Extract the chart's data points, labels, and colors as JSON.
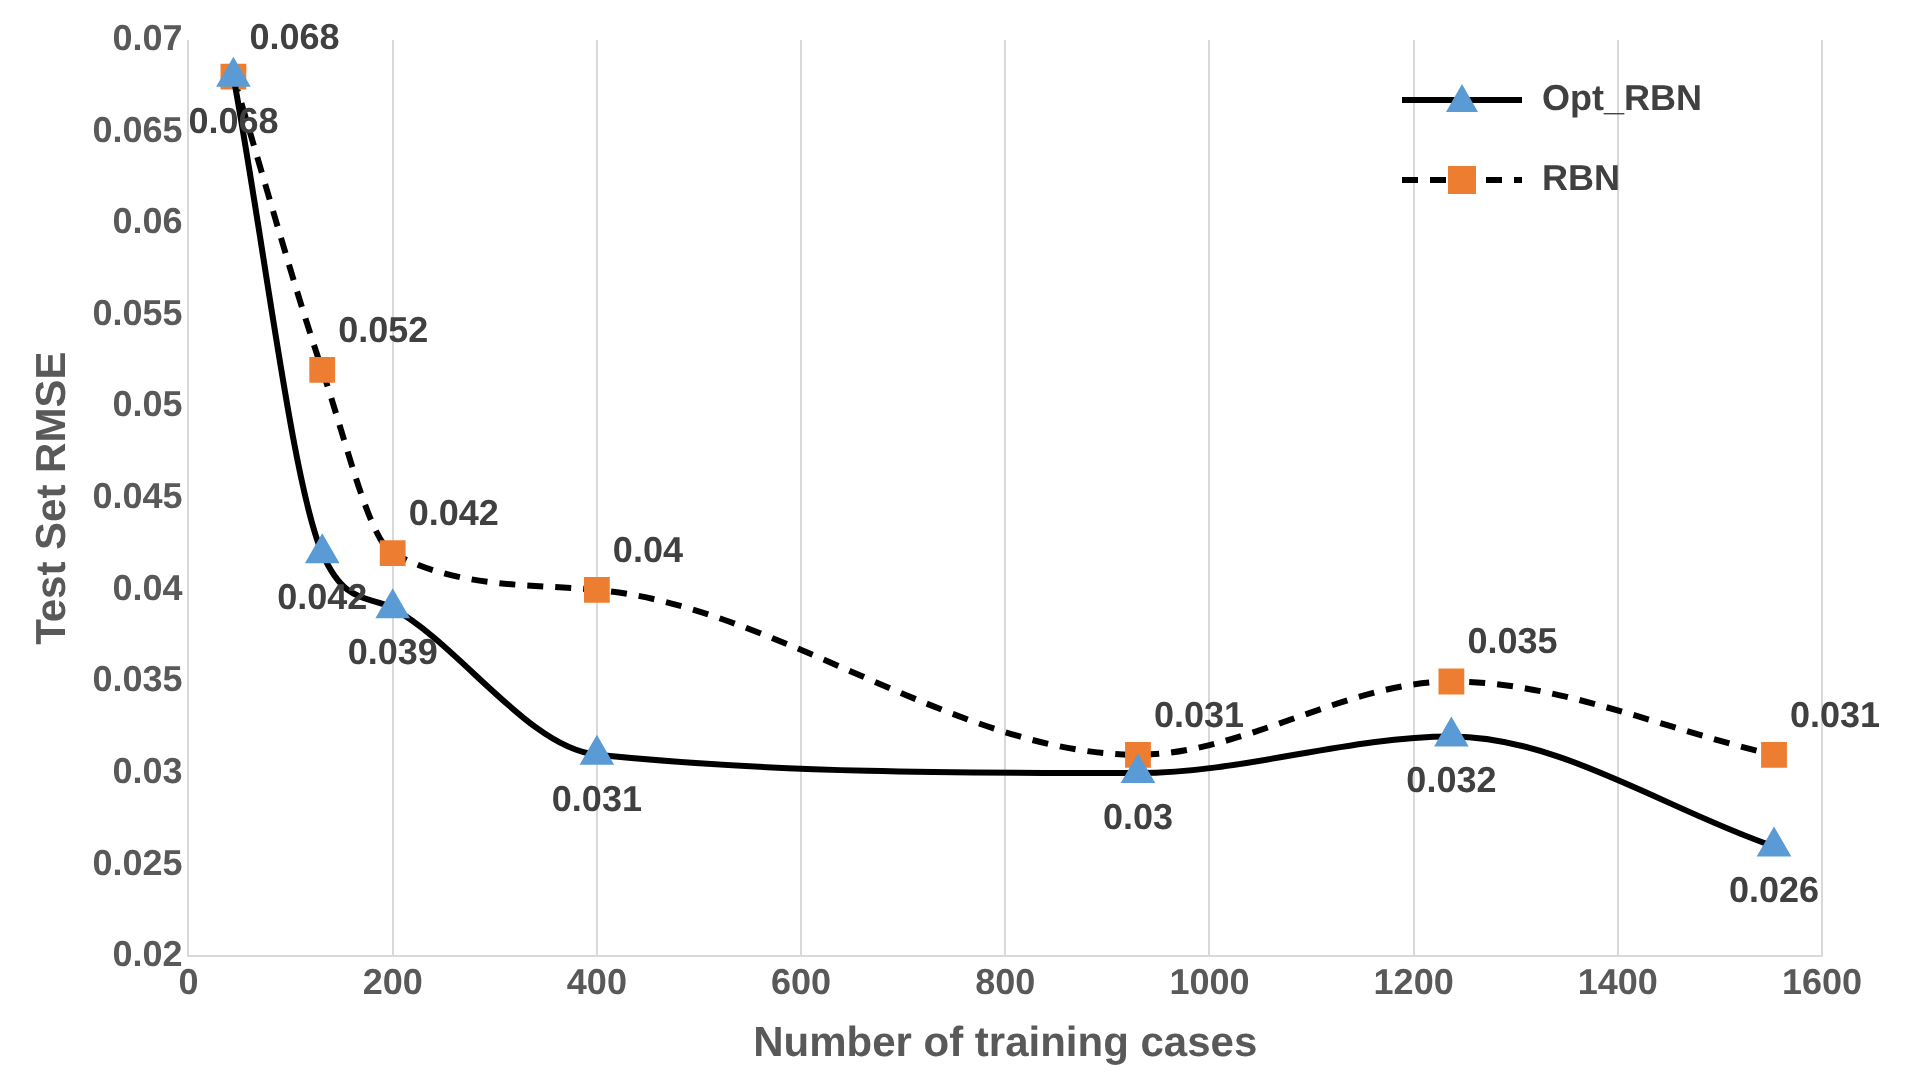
{
  "chart_data": {
    "type": "line",
    "xlabel": "Number of training cases",
    "ylabel": "Test Set RMSE",
    "x": [
      44,
      131,
      200,
      400,
      930,
      1237,
      1553
    ],
    "series": [
      {
        "name": "Opt_RBN",
        "color": "#5b9bd5",
        "marker": "triangle",
        "line_style": "solid",
        "values": [
          0.068,
          0.042,
          0.039,
          0.031,
          0.03,
          0.032,
          0.026
        ]
      },
      {
        "name": "RBN",
        "color": "#ed7d31",
        "marker": "square",
        "line_style": "dashed",
        "values": [
          0.068,
          0.052,
          0.042,
          0.04,
          0.031,
          0.035,
          0.031
        ]
      }
    ],
    "xlim": [
      0,
      1600
    ],
    "xticks": [
      0,
      200,
      400,
      600,
      800,
      1000,
      1200,
      1400,
      1600
    ],
    "ylim": [
      0.02,
      0.07
    ],
    "yticks": [
      0.02,
      0.025,
      0.03,
      0.035,
      0.04,
      0.045,
      0.05,
      0.055,
      0.06,
      0.065,
      0.07
    ],
    "grid": "x",
    "legend": "top right",
    "data_labels": true
  }
}
